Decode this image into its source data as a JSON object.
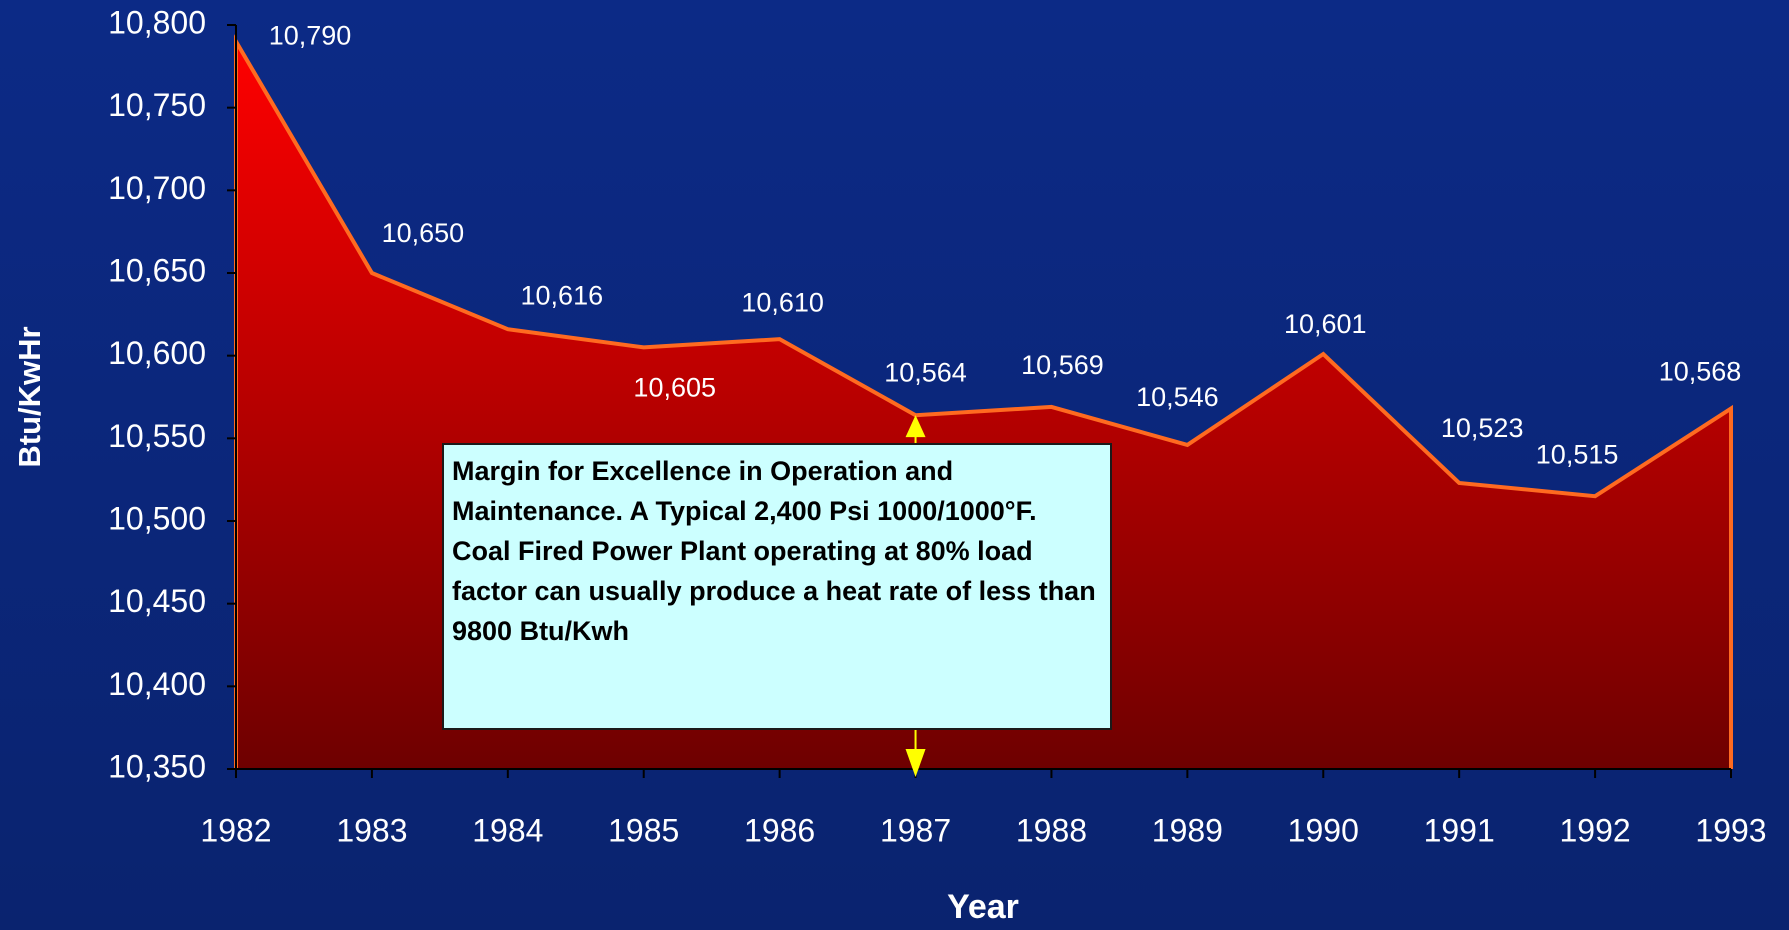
{
  "chart_data": {
    "type": "area",
    "ylabel": "Btu/KwHr",
    "xlabel": "Year",
    "categories": [
      "1982",
      "1983",
      "1984",
      "1985",
      "1986",
      "1987",
      "1988",
      "1989",
      "1990",
      "1991",
      "1992",
      "1993"
    ],
    "values": [
      10790,
      10650,
      10616,
      10605,
      10610,
      10564,
      10569,
      10546,
      10601,
      10523,
      10515,
      10568
    ],
    "value_labels": [
      "10,790",
      "10,650",
      "10,616",
      "10,605",
      "10,610",
      "10,564",
      "10,569",
      "10,546",
      "10,601",
      "10,523",
      "10,515",
      "10,568"
    ],
    "color": "#ff0000",
    "line_color": "#ff6a20",
    "ylim": [
      10350,
      10800
    ],
    "yticks": [
      {
        "value": 10350,
        "label": "10,350"
      },
      {
        "value": 10400,
        "label": "10,400"
      },
      {
        "value": 10450,
        "label": "10,450"
      },
      {
        "value": 10500,
        "label": "10,500"
      },
      {
        "value": 10550,
        "label": "10,550"
      },
      {
        "value": 10600,
        "label": "10,600"
      },
      {
        "value": 10650,
        "label": "10,650"
      },
      {
        "value": 10700,
        "label": "10,700"
      },
      {
        "value": 10750,
        "label": "10,750"
      },
      {
        "value": 10800,
        "label": "10,800"
      }
    ],
    "annotation": "Margin for Excellence in Operation and Maintenance. A Typical 2,400 Psi 1000/1000°F.  Coal Fired Power Plant operating at 80% load factor can usually produce a heat rate of less than 9800 Btu/Kwh"
  }
}
